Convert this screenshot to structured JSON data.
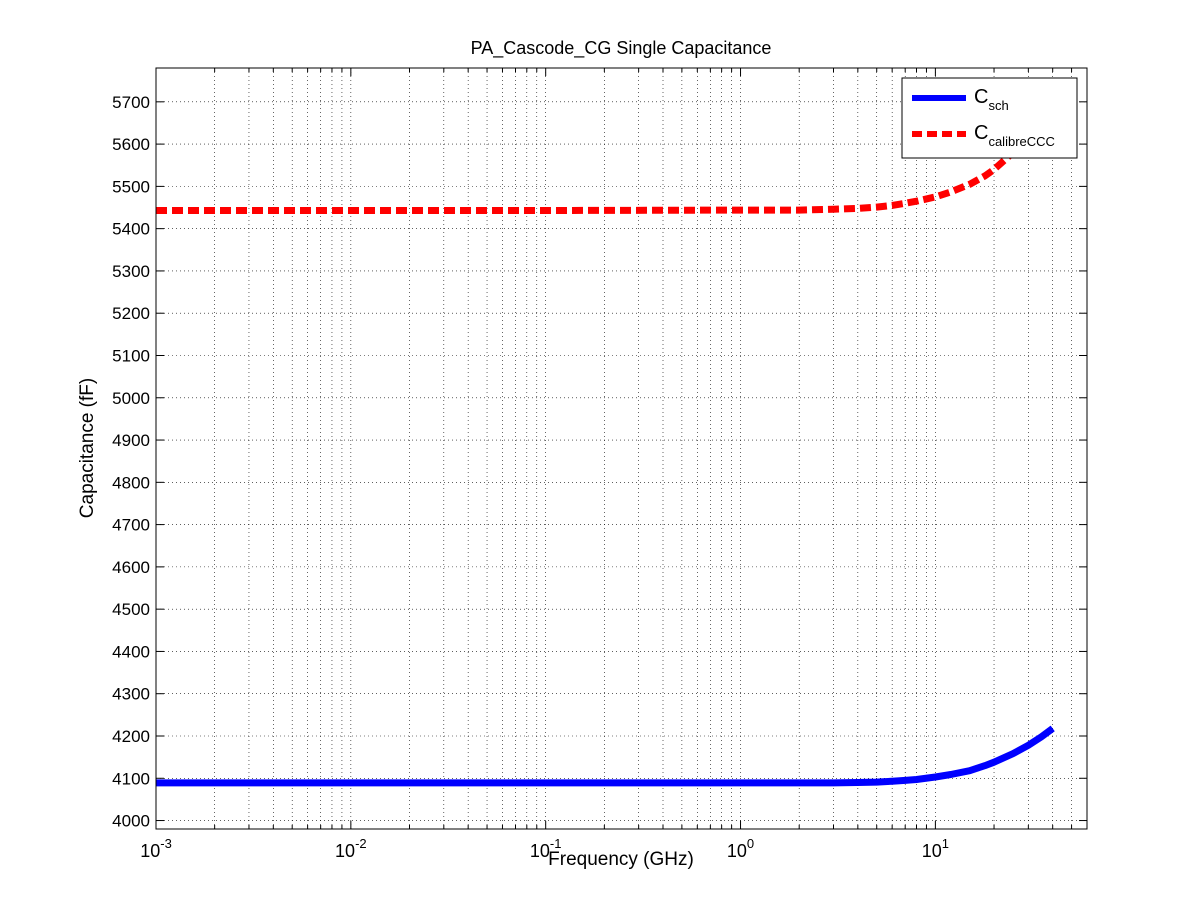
{
  "chart_data": {
    "type": "line",
    "title": "PA_Cascode_CG Single Capacitance",
    "xlabel": "Frequency (GHz)",
    "ylabel": "Capacitance (fF)",
    "x_scale": "log",
    "xlim": [
      0.001,
      60
    ],
    "ylim": [
      3980,
      5780
    ],
    "x_tick_labels": [
      {
        "value": 0.001,
        "base": "10",
        "exp": "-3"
      },
      {
        "value": 0.01,
        "base": "10",
        "exp": "-2"
      },
      {
        "value": 0.1,
        "base": "10",
        "exp": "-1"
      },
      {
        "value": 1,
        "base": "10",
        "exp": "0"
      },
      {
        "value": 10,
        "base": "10",
        "exp": "1"
      }
    ],
    "y_ticks": [
      4000,
      4100,
      4200,
      4300,
      4400,
      4500,
      4600,
      4700,
      4800,
      4900,
      5000,
      5100,
      5200,
      5300,
      5400,
      5500,
      5600,
      5700
    ],
    "grid": true,
    "legend_position": "top-right",
    "series": [
      {
        "name": "C",
        "name_sub": "sch",
        "color": "#0000ff",
        "style": "solid",
        "x": [
          0.001,
          0.01,
          0.1,
          1,
          2,
          3,
          4,
          5,
          6,
          7,
          8,
          10,
          12,
          15,
          18,
          20,
          25,
          30,
          35,
          40
        ],
        "y": [
          4089,
          4089,
          4089,
          4089,
          4089,
          4089,
          4090,
          4091,
          4093,
          4095,
          4097,
          4103,
          4109,
          4118,
          4130,
          4138,
          4158,
          4178,
          4198,
          4218
        ]
      },
      {
        "name": "C",
        "name_sub": "calibreCCC",
        "color": "#ff0000",
        "style": "dashed",
        "x": [
          0.001,
          0.01,
          0.1,
          1,
          2,
          3,
          4,
          5,
          6,
          7,
          8,
          10,
          12,
          15,
          18,
          20,
          25,
          30,
          35,
          40
        ],
        "y": [
          5443,
          5443,
          5443,
          5444,
          5444,
          5446,
          5448,
          5451,
          5455,
          5460,
          5465,
          5475,
          5487,
          5505,
          5525,
          5540,
          5580,
          5625,
          5675,
          5730
        ]
      }
    ]
  }
}
